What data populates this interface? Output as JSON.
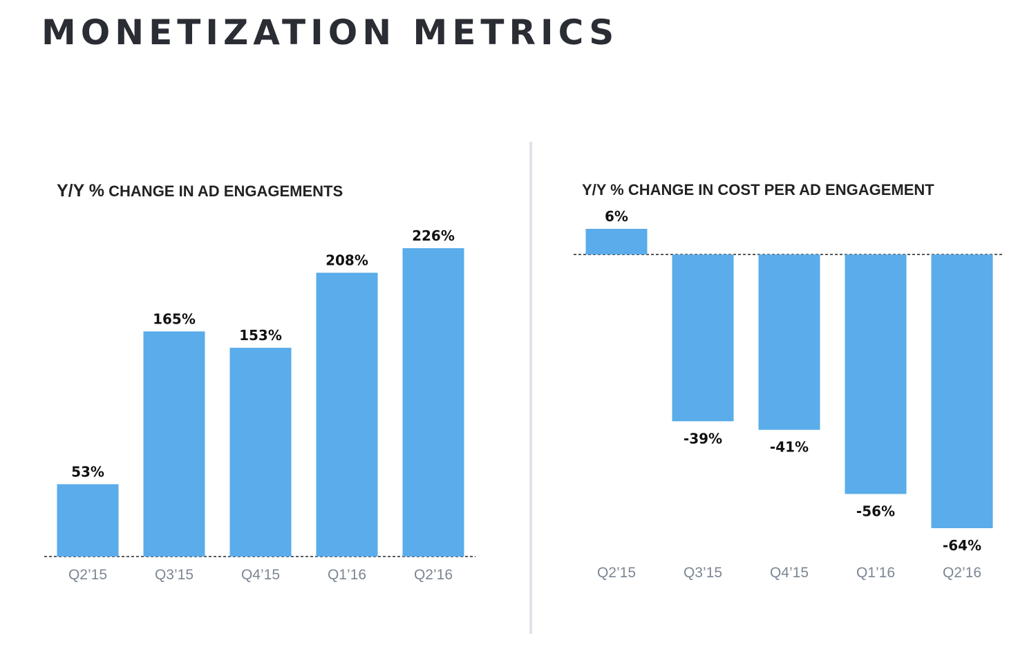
{
  "title": "MONETIZATION METRICS",
  "colors": {
    "bar": "#5aacea",
    "title": "#2a2d33",
    "tick": "#7b8692",
    "divider": "#dfe3e8"
  },
  "chart_data": [
    {
      "type": "bar",
      "title_lead": "Y/Y %",
      "title_rest": " CHANGE IN AD ENGAGEMENTS",
      "title": "Y/Y % CHANGE IN AD ENGAGEMENTS",
      "categories": [
        "Q2’15",
        "Q3’15",
        "Q4’15",
        "Q1’16",
        "Q2’16"
      ],
      "values": [
        53,
        165,
        153,
        208,
        226
      ],
      "labels": [
        "53%",
        "165%",
        "153%",
        "208%",
        "226%"
      ],
      "xlabel": "",
      "ylabel": "",
      "ylim": [
        0,
        226
      ],
      "grid": false,
      "legend": "none"
    },
    {
      "type": "bar",
      "title": "Y/Y % CHANGE IN COST PER AD ENGAGEMENT",
      "categories": [
        "Q2’15",
        "Q3’15",
        "Q4’15",
        "Q1’16",
        "Q2’16"
      ],
      "values": [
        6,
        -39,
        -41,
        -56,
        -64
      ],
      "labels": [
        "6%",
        "-39%",
        "-41%",
        "-56%",
        "-64%"
      ],
      "xlabel": "",
      "ylabel": "",
      "ylim": [
        -64,
        6
      ],
      "grid": false,
      "legend": "none"
    }
  ]
}
